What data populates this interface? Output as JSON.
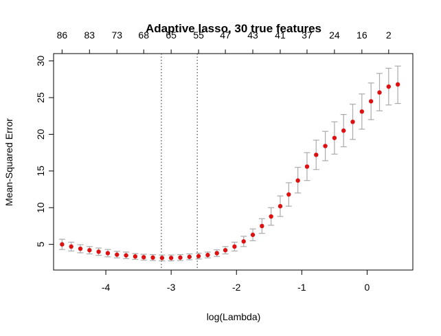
{
  "chart_data": {
    "type": "scatter",
    "title": "Adaptive lasso, 30 true features",
    "xlabel": "log(Lambda)",
    "ylabel": "Mean-Squared Error",
    "xlim": [
      -4.8,
      0.7
    ],
    "ylim": [
      1.5,
      31.0
    ],
    "x_ticks": [
      -4,
      -3,
      -2,
      -1,
      0
    ],
    "y_ticks": [
      5,
      10,
      15,
      20,
      25,
      30
    ],
    "top_axis_labels": [
      {
        "x": -4.67,
        "label": "86"
      },
      {
        "x": -4.25,
        "label": "83"
      },
      {
        "x": -3.83,
        "label": "73"
      },
      {
        "x": -3.42,
        "label": "68"
      },
      {
        "x": -3.0,
        "label": "65"
      },
      {
        "x": -2.58,
        "label": "55"
      },
      {
        "x": -2.17,
        "label": "47"
      },
      {
        "x": -1.75,
        "label": "43"
      },
      {
        "x": -1.33,
        "label": "41"
      },
      {
        "x": -0.92,
        "label": "37"
      },
      {
        "x": -0.5,
        "label": "24"
      },
      {
        "x": -0.08,
        "label": "16"
      },
      {
        "x": 0.33,
        "label": "2"
      }
    ],
    "vlines": [
      -3.15,
      -2.6
    ],
    "grid": false,
    "legend": "none",
    "colors": {
      "point": "#dd1111",
      "errorbar": "#aaaaaa",
      "axis": "#000000",
      "vline": "#444444"
    },
    "series": [
      {
        "x": [
          -4.67,
          -4.53,
          -4.39,
          -4.25,
          -4.11,
          -3.97,
          -3.83,
          -3.69,
          -3.55,
          -3.42,
          -3.28,
          -3.14,
          -3.0,
          -2.86,
          -2.72,
          -2.58,
          -2.44,
          -2.3,
          -2.17,
          -2.03,
          -1.89,
          -1.75,
          -1.61,
          -1.47,
          -1.33,
          -1.2,
          -1.06,
          -0.92,
          -0.78,
          -0.64,
          -0.5,
          -0.36,
          -0.22,
          -0.08,
          0.06,
          0.19,
          0.33,
          0.47
        ],
        "y": [
          5.0,
          4.7,
          4.4,
          4.2,
          4.0,
          3.8,
          3.6,
          3.5,
          3.35,
          3.25,
          3.2,
          3.15,
          3.15,
          3.2,
          3.3,
          3.4,
          3.55,
          3.8,
          4.2,
          4.7,
          5.4,
          6.3,
          7.5,
          8.8,
          10.2,
          11.8,
          13.7,
          15.6,
          17.2,
          18.4,
          19.5,
          20.5,
          21.7,
          23.1,
          24.5,
          25.7,
          26.5,
          26.8
        ],
        "lower": [
          4.3,
          4.1,
          3.85,
          3.7,
          3.5,
          3.3,
          3.15,
          3.05,
          2.95,
          2.85,
          2.8,
          2.75,
          2.75,
          2.8,
          2.9,
          3.0,
          3.15,
          3.35,
          3.7,
          4.1,
          4.7,
          5.5,
          6.5,
          7.6,
          8.8,
          10.2,
          12.0,
          13.7,
          15.2,
          16.4,
          17.3,
          18.3,
          19.3,
          20.7,
          22.0,
          23.2,
          24.0,
          24.2
        ],
        "upper": [
          5.7,
          5.3,
          4.95,
          4.7,
          4.5,
          4.3,
          4.05,
          3.95,
          3.75,
          3.65,
          3.6,
          3.55,
          3.55,
          3.6,
          3.7,
          3.8,
          3.95,
          4.25,
          4.7,
          5.3,
          6.1,
          7.1,
          8.5,
          10.0,
          11.6,
          13.4,
          15.5,
          17.5,
          19.2,
          20.4,
          21.7,
          22.7,
          24.1,
          25.5,
          27.0,
          28.3,
          29.0,
          29.3
        ]
      }
    ]
  }
}
